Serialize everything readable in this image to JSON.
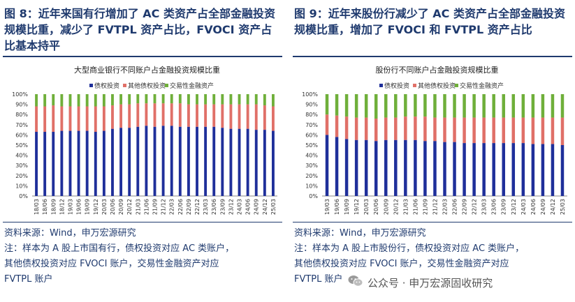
{
  "left": {
    "title_lines": [
      "图 8：近年来国有行增加了 AC 类资产占全部金融投资",
      "规模比重，减少了 FVTPL 资产占比，FVOCI 资产占",
      "比基本持平"
    ],
    "notes": [
      "资料来源：Wind，申万宏源研究",
      "注：样本为 A 股上市国有行，债权投资对应 AC 类账户，",
      "其他债权投资对应 FVOCI 账户，交易性金融资产对应",
      "FVTPL 账户"
    ]
  },
  "right": {
    "title_lines": [
      "图 9：近年来股份行减少了 AC 类资产占全部金融投资",
      "规模比重，增加了 FVOCI 和 FVTPL 资产占比"
    ],
    "notes": [
      "资料来源：Wind，申万宏源研究",
      "注：样本为 A 股上市股份行，债权投资对应 AC 类账户，",
      "其他债权投资对应 FVOCI 账户，交易性金融资产对应",
      "FVTPL 账户"
    ]
  },
  "watermark": "公众号 · 申万宏源固收研究",
  "colors": {
    "ac": "#1f2f9a",
    "fvoci": "#e07068",
    "fvtpl": "#6faf3a",
    "title": "#1f3a6e"
  },
  "chart_data": [
    {
      "type": "bar",
      "stacked": true,
      "title": "大型商业银行不同账户占金融投资规模比重",
      "categories": [
        "18/03",
        "18/06",
        "18/09",
        "18/12",
        "19/03",
        "19/06",
        "19/09",
        "19/12",
        "20/03",
        "20/06",
        "20/09",
        "20/12",
        "21/03",
        "21/06",
        "21/09",
        "21/12",
        "22/03",
        "22/06",
        "22/09",
        "22/12",
        "23/03",
        "23/06",
        "23/09",
        "23/12",
        "24/03",
        "24/06",
        "24/09",
        "24/12",
        "25/03"
      ],
      "series": [
        {
          "name": "债权投资",
          "values": [
            63,
            63,
            63,
            64,
            64,
            64,
            64,
            63,
            64,
            66,
            67,
            67,
            68,
            69,
            68,
            69,
            69,
            68,
            68,
            68,
            68,
            68,
            67,
            66,
            66,
            66,
            65,
            65,
            64
          ]
        },
        {
          "name": "其他债权投资",
          "values": [
            25,
            25,
            26,
            24,
            24,
            24,
            24,
            25,
            24,
            23,
            23,
            23,
            23,
            22,
            23,
            22,
            22,
            23,
            22,
            22,
            22,
            22,
            23,
            24,
            24,
            24,
            25,
            24,
            24
          ]
        },
        {
          "name": "交易性金融资产",
          "values": [
            12,
            12,
            11,
            12,
            12,
            12,
            12,
            12,
            12,
            11,
            10,
            10,
            9,
            9,
            9,
            9,
            9,
            9,
            10,
            10,
            10,
            10,
            10,
            10,
            10,
            10,
            10,
            11,
            12
          ]
        }
      ],
      "ylim": [
        0,
        100
      ],
      "yticks": [
        "0%",
        "10%",
        "20%",
        "30%",
        "40%",
        "50%",
        "60%",
        "70%",
        "80%",
        "90%",
        "100%"
      ],
      "legend": "top",
      "grid": false
    },
    {
      "type": "bar",
      "stacked": true,
      "title": "股份行不同账户占金融投资规模比重",
      "categories": [
        "19/03",
        "19/06",
        "19/09",
        "19/12",
        "20/03",
        "20/06",
        "20/09",
        "20/12",
        "21/03",
        "21/06",
        "21/09",
        "21/12",
        "22/03",
        "22/06",
        "22/09",
        "22/12",
        "23/03",
        "23/06",
        "23/09",
        "23/12",
        "24/03",
        "24/06",
        "24/09",
        "24/12",
        "25/03"
      ],
      "series": [
        {
          "name": "债权投资",
          "values": [
            60,
            58,
            56,
            55,
            55,
            54,
            55,
            55,
            55,
            55,
            54,
            54,
            53,
            53,
            52,
            52,
            52,
            52,
            52,
            52,
            52,
            51,
            51,
            51,
            50
          ]
        },
        {
          "name": "其他债权投资",
          "values": [
            20,
            21,
            22,
            22,
            22,
            22,
            22,
            22,
            23,
            23,
            24,
            23,
            24,
            24,
            25,
            25,
            25,
            25,
            25,
            25,
            25,
            26,
            26,
            26,
            27
          ]
        },
        {
          "name": "交易性金融资产",
          "values": [
            20,
            21,
            22,
            23,
            23,
            24,
            23,
            23,
            22,
            22,
            22,
            23,
            23,
            23,
            23,
            23,
            23,
            23,
            23,
            23,
            23,
            23,
            23,
            23,
            23
          ]
        }
      ],
      "ylim": [
        0,
        100
      ],
      "yticks": [
        "0%",
        "10%",
        "20%",
        "30%",
        "40%",
        "50%",
        "60%",
        "70%",
        "80%",
        "90%",
        "100%"
      ],
      "legend": "top",
      "grid": false
    }
  ]
}
